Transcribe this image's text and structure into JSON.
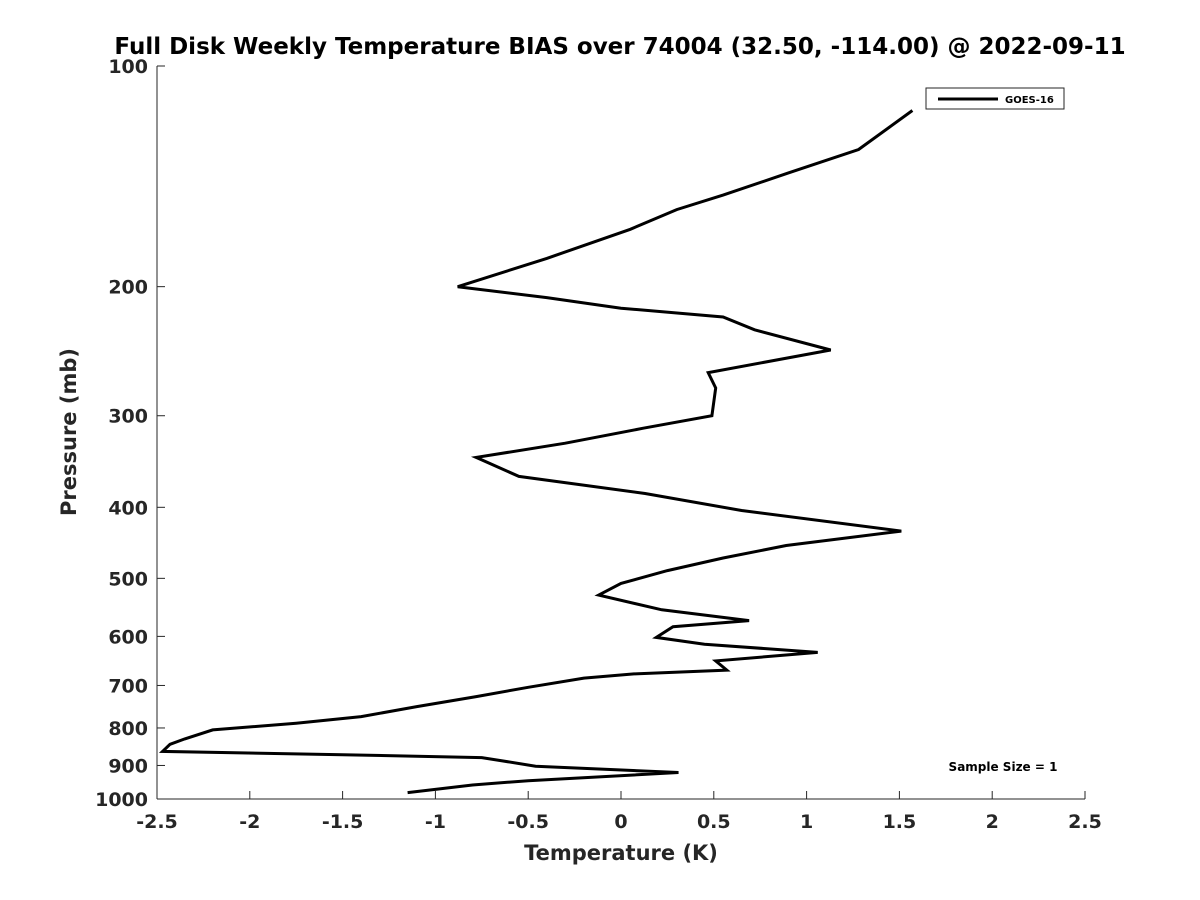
{
  "chart_data": {
    "type": "line",
    "title": "Full Disk Weekly Temperature BIAS over 74004 (32.50, -114.00) @ 2022-09-11",
    "xlabel": "Temperature (K)",
    "ylabel": "Pressure (mb)",
    "xlim": [
      -2.5,
      2.5
    ],
    "ylim": [
      100,
      1000
    ],
    "y_scale": "log",
    "y_reversed": true,
    "grid": false,
    "x_ticks": [
      -2.5,
      -2,
      -1.5,
      -1,
      -0.5,
      0,
      0.5,
      1,
      1.5,
      2,
      2.5
    ],
    "x_tick_labels": [
      "-2.5",
      "-2",
      "-1.5",
      "-1",
      "-0.5",
      "0",
      "0.5",
      "1",
      "1.5",
      "2",
      "2.5"
    ],
    "y_ticks": [
      100,
      200,
      300,
      400,
      500,
      600,
      700,
      800,
      900,
      1000
    ],
    "y_tick_labels": [
      "100",
      "200",
      "300",
      "400",
      "500",
      "600",
      "700",
      "800",
      "900",
      "1000"
    ],
    "legend": {
      "position": "top-right",
      "entries": [
        "GOES-16"
      ]
    },
    "annotation": "Sample Size = 1",
    "series": [
      {
        "name": "GOES-16",
        "color": "#000000",
        "points": [
          [
            1.57,
            115
          ],
          [
            1.28,
            130
          ],
          [
            0.9,
            140
          ],
          [
            0.55,
            150
          ],
          [
            0.3,
            157
          ],
          [
            0.05,
            167
          ],
          [
            -0.4,
            183
          ],
          [
            -0.88,
            200
          ],
          [
            -0.4,
            207
          ],
          [
            0.0,
            214
          ],
          [
            0.55,
            220
          ],
          [
            0.72,
            229
          ],
          [
            1.13,
            244
          ],
          [
            0.47,
            262
          ],
          [
            0.51,
            275
          ],
          [
            0.49,
            300
          ],
          [
            0.12,
            312
          ],
          [
            -0.3,
            327
          ],
          [
            -0.78,
            342
          ],
          [
            -0.55,
            363
          ],
          [
            0.13,
            383
          ],
          [
            0.65,
            404
          ],
          [
            1.51,
            431
          ],
          [
            0.89,
            451
          ],
          [
            0.55,
            469
          ],
          [
            0.25,
            488
          ],
          [
            0.0,
            508
          ],
          [
            -0.12,
            527
          ],
          [
            0.22,
            552
          ],
          [
            0.69,
            571
          ],
          [
            0.28,
            582
          ],
          [
            0.19,
            602
          ],
          [
            0.45,
            615
          ],
          [
            1.06,
            631
          ],
          [
            0.51,
            648
          ],
          [
            0.57,
            667
          ],
          [
            0.07,
            675
          ],
          [
            -0.2,
            684
          ],
          [
            -0.5,
            704
          ],
          [
            -0.78,
            725
          ],
          [
            -1.1,
            748
          ],
          [
            -1.4,
            772
          ],
          [
            -1.75,
            788
          ],
          [
            -2.2,
            805
          ],
          [
            -2.35,
            828
          ],
          [
            -2.43,
            842
          ],
          [
            -2.47,
            861
          ],
          [
            -1.5,
            870
          ],
          [
            -0.75,
            878
          ],
          [
            -0.46,
            902
          ],
          [
            0.31,
            920
          ],
          [
            -0.5,
            944
          ],
          [
            -0.8,
            957
          ],
          [
            -1.15,
            980
          ]
        ]
      }
    ]
  }
}
